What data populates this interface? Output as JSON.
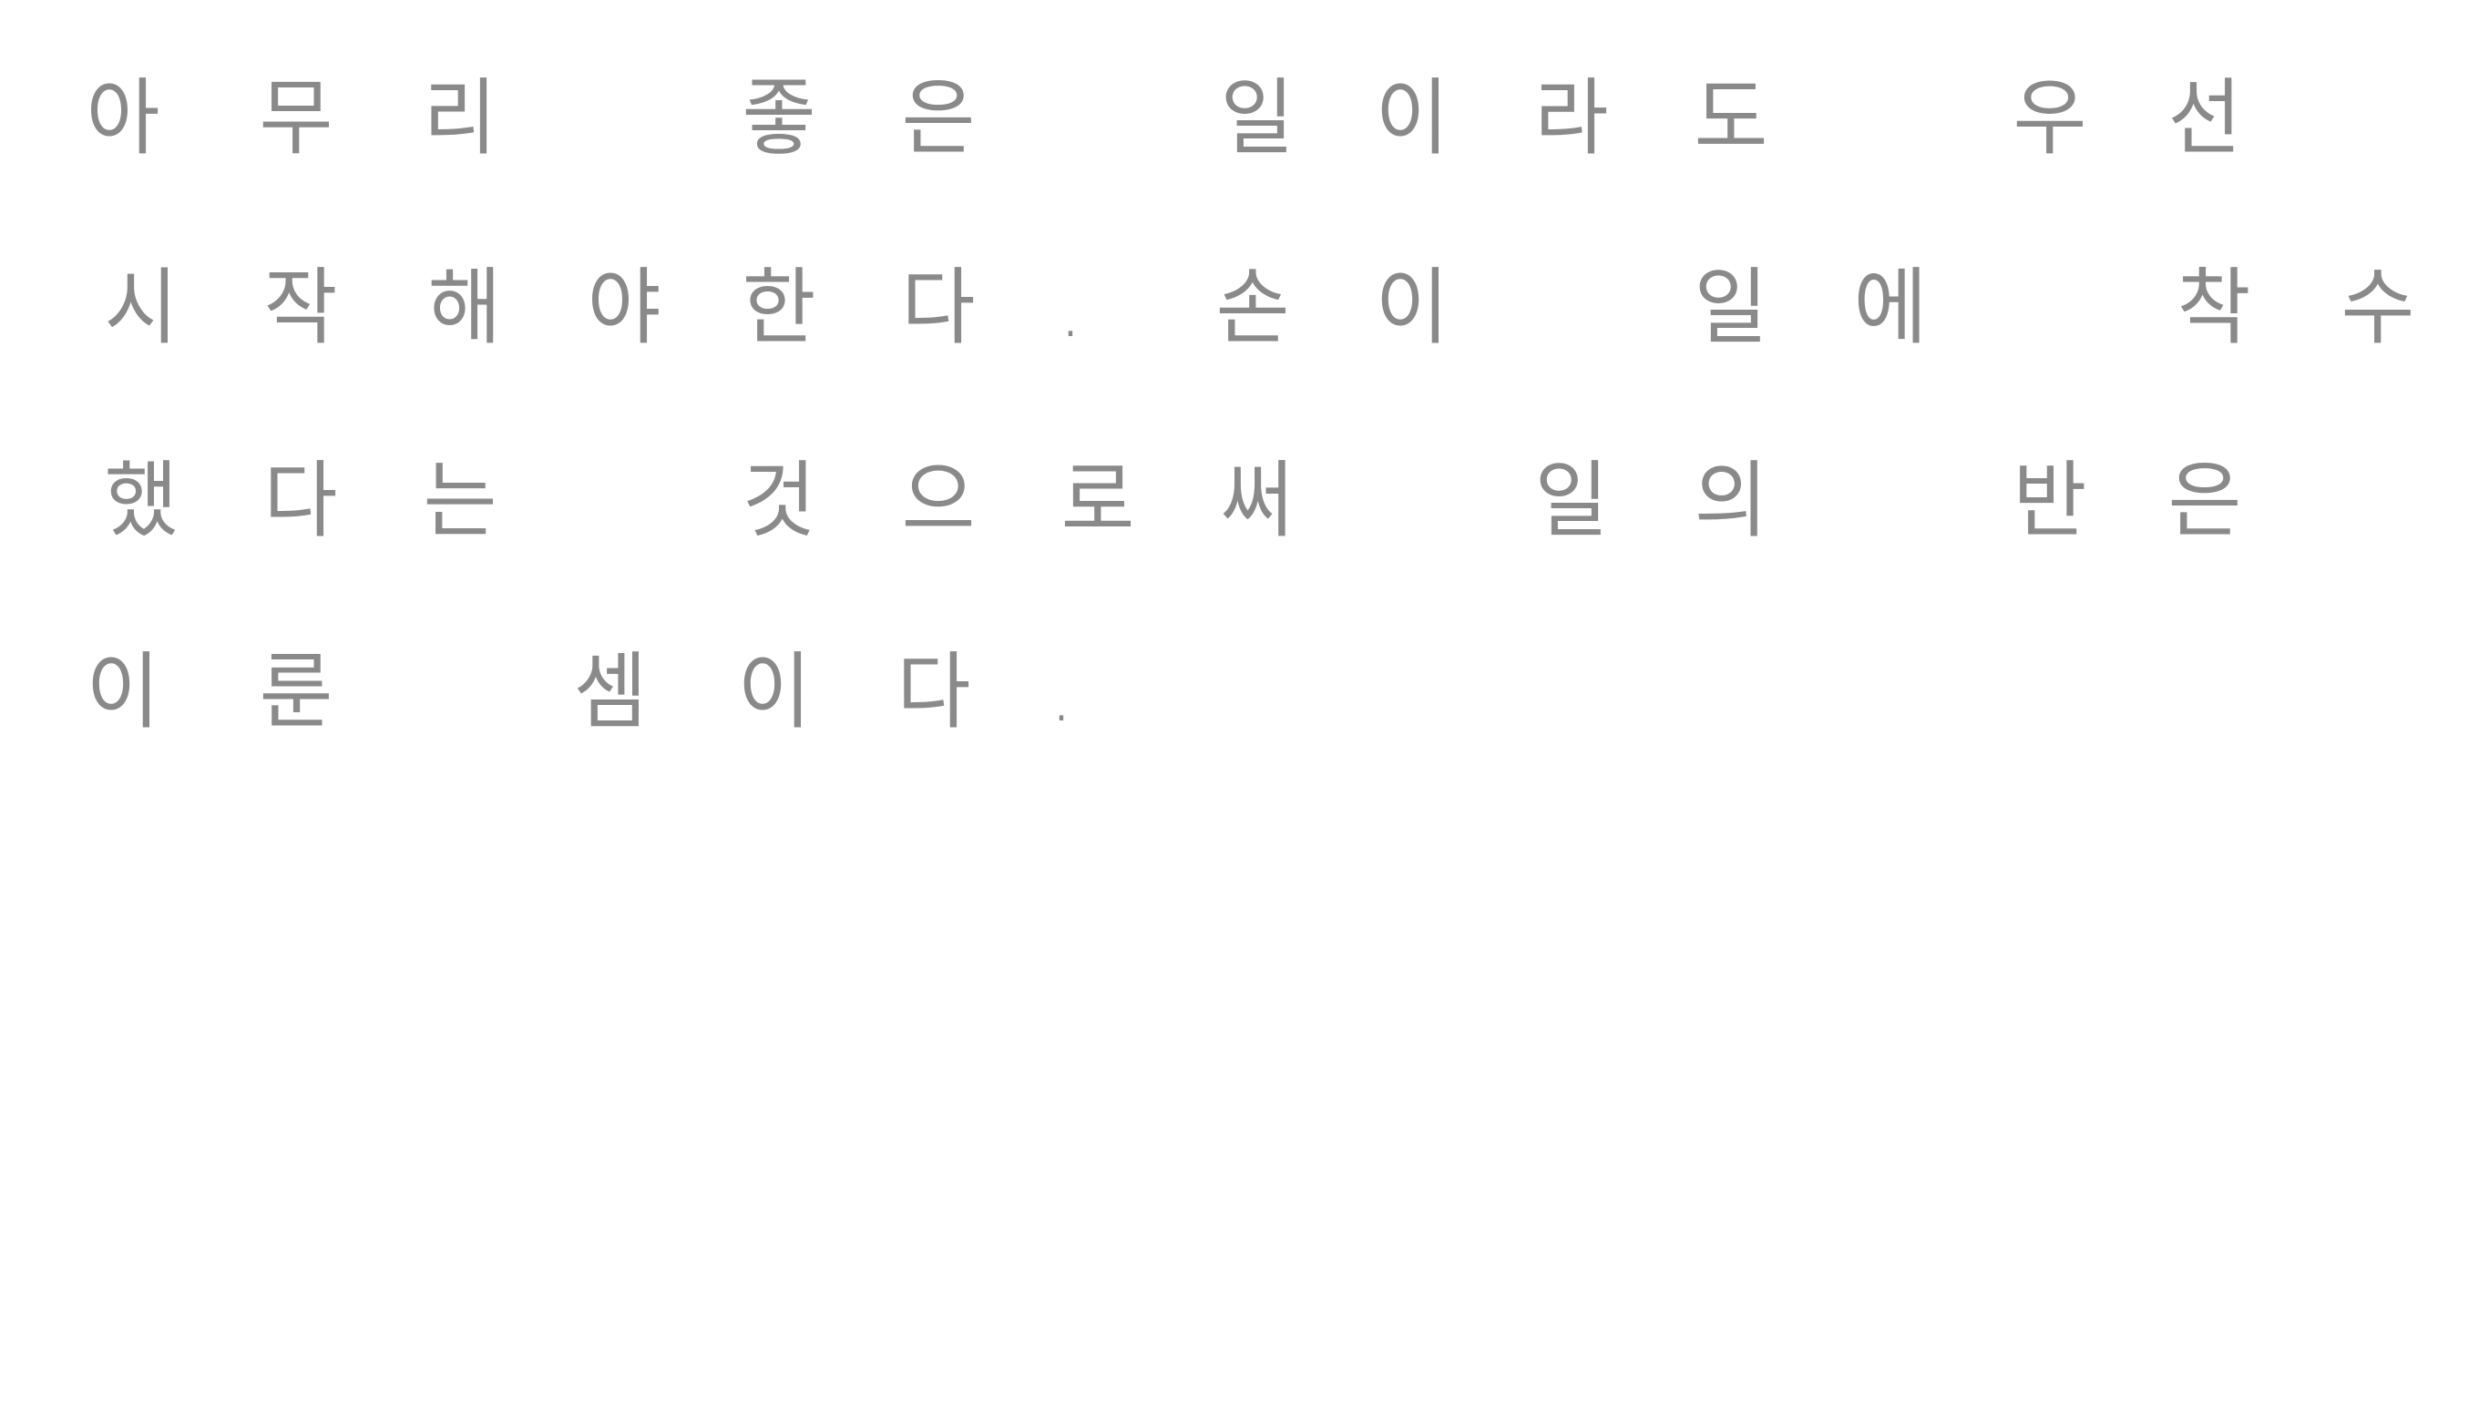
{
  "handwriting": {
    "lines": [
      [
        "아",
        "무",
        "리",
        "좋",
        "은",
        "일",
        "이",
        "라",
        "도",
        "우",
        "선"
      ],
      [
        "시",
        "작",
        "해",
        "야",
        "한",
        "다",
        ".",
        "손",
        "이",
        "일",
        "에",
        "착",
        "수"
      ],
      [
        "했",
        "다",
        "는",
        "것",
        "으",
        "로",
        "써",
        "일",
        "의",
        "반",
        "은"
      ],
      [
        "이",
        "룬",
        "셈",
        "이",
        "다",
        "."
      ]
    ]
  },
  "colors": {
    "ink": "#8a8a8a",
    "background": "#ffffff"
  }
}
